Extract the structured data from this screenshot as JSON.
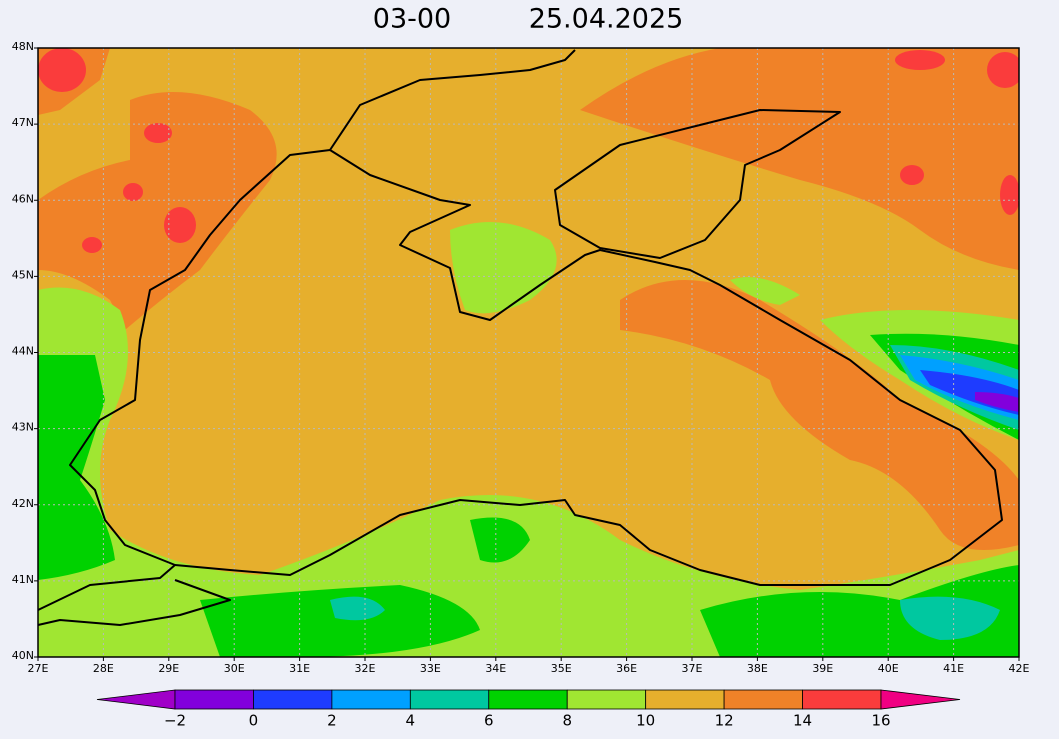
{
  "map": {
    "title": {
      "time": "03-00",
      "date": "25.04.2025"
    },
    "lon_range": [
      27,
      42
    ],
    "lat_range": [
      40,
      48
    ],
    "lon_ticks": [
      {
        "value": 27,
        "label": "27E"
      },
      {
        "value": 28,
        "label": "28E"
      },
      {
        "value": 29,
        "label": "29E"
      },
      {
        "value": 30,
        "label": "30E"
      },
      {
        "value": 31,
        "label": "31E"
      },
      {
        "value": 32,
        "label": "32E"
      },
      {
        "value": 33,
        "label": "33E"
      },
      {
        "value": 34,
        "label": "34E"
      },
      {
        "value": 35,
        "label": "35E"
      },
      {
        "value": 36,
        "label": "36E"
      },
      {
        "value": 37,
        "label": "37E"
      },
      {
        "value": 38,
        "label": "38E"
      },
      {
        "value": 39,
        "label": "39E"
      },
      {
        "value": 40,
        "label": "40E"
      },
      {
        "value": 41,
        "label": "41E"
      },
      {
        "value": 42,
        "label": "42E"
      }
    ],
    "lat_ticks": [
      {
        "value": 40,
        "label": "40N"
      },
      {
        "value": 41,
        "label": "41N"
      },
      {
        "value": 42,
        "label": "42N"
      },
      {
        "value": 43,
        "label": "43N"
      },
      {
        "value": 44,
        "label": "44N"
      },
      {
        "value": 45,
        "label": "45N"
      },
      {
        "value": 46,
        "label": "46N"
      },
      {
        "value": 47,
        "label": "47N"
      },
      {
        "value": 48,
        "label": "48N"
      }
    ],
    "colorbar": {
      "levels": [
        {
          "value": -2,
          "label": "−2"
        },
        0,
        2,
        4,
        6,
        8,
        10,
        12,
        14,
        16
      ],
      "colors": [
        "#a000c8",
        "#8200dc",
        "#1e3cff",
        "#00a0ff",
        "#00c8a0",
        "#00d200",
        "#a0e632",
        "#e6af2d",
        "#f08228",
        "#fa3c3c",
        "#f00082"
      ]
    }
  }
}
